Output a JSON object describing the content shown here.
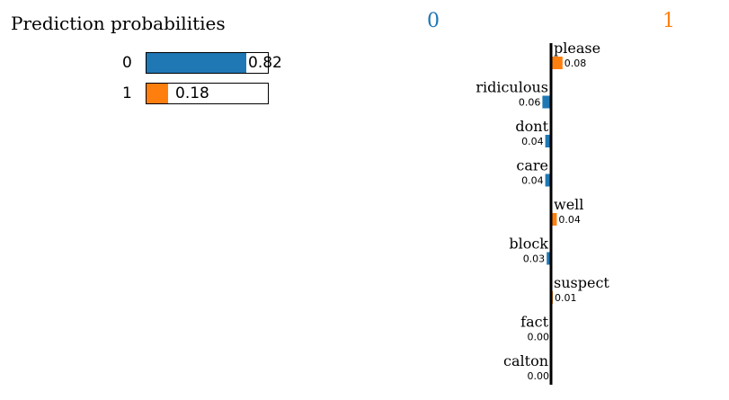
{
  "chart_data": [
    {
      "type": "bar",
      "title": "Prediction probabilities",
      "categories": [
        "0",
        "1"
      ],
      "values": [
        0.82,
        0.18
      ],
      "value_labels": [
        "0.82",
        "0.18"
      ],
      "colors": [
        "#1f77b4",
        "#ff7f0e"
      ],
      "xlim": [
        0,
        1
      ]
    },
    {
      "type": "bar",
      "class_labels": [
        "0",
        "1"
      ],
      "class_colors": [
        "#1f77b4",
        "#ff7f0e"
      ],
      "features": [
        {
          "word": "please",
          "weight": 0.08,
          "label": "0.08",
          "class": "1"
        },
        {
          "word": "ridiculous",
          "weight": 0.06,
          "label": "0.06",
          "class": "0"
        },
        {
          "word": "dont",
          "weight": 0.04,
          "label": "0.04",
          "class": "0"
        },
        {
          "word": "care",
          "weight": 0.04,
          "label": "0.04",
          "class": "0"
        },
        {
          "word": "well",
          "weight": 0.04,
          "label": "0.04",
          "class": "1"
        },
        {
          "word": "block",
          "weight": 0.03,
          "label": "0.03",
          "class": "0"
        },
        {
          "word": "suspect",
          "weight": 0.01,
          "label": "0.01",
          "class": "1"
        },
        {
          "word": "fact",
          "weight": 0.0,
          "label": "0.00",
          "class": "0"
        },
        {
          "word": "calton",
          "weight": 0.0,
          "label": "0.00",
          "class": "0"
        }
      ]
    }
  ]
}
